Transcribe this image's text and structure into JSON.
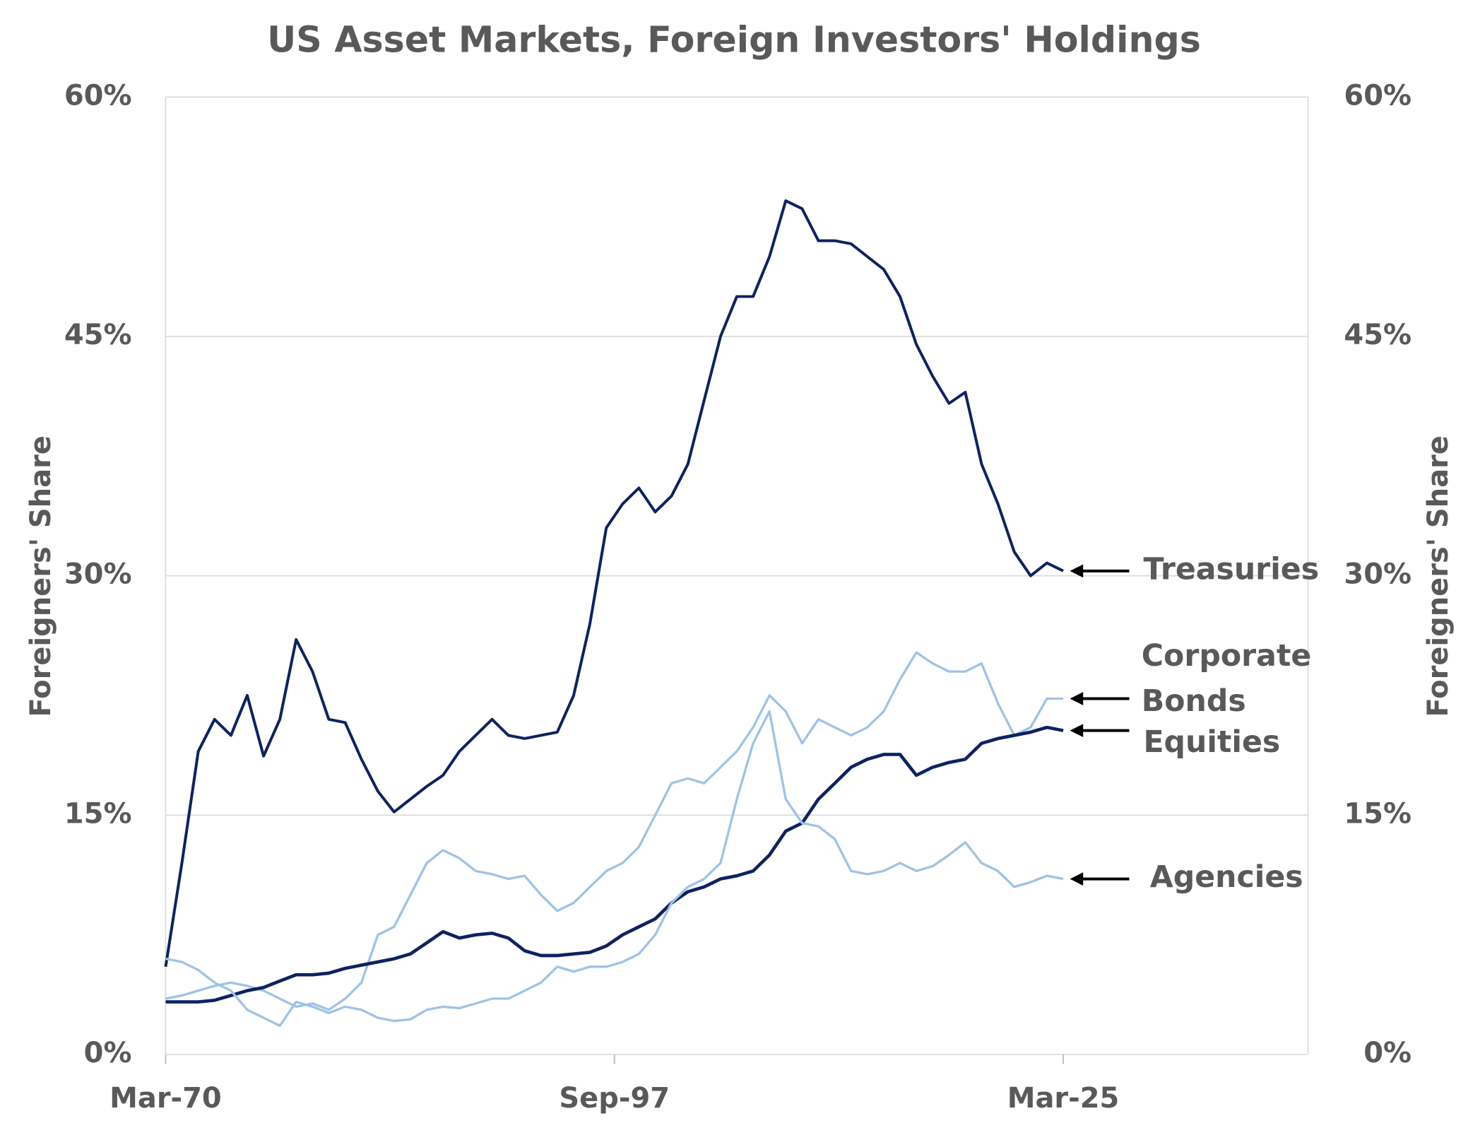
{
  "chart_data": {
    "type": "line",
    "title": "US Asset Markets, Foreign Investors' Holdings",
    "ylabel": "Foreigners' Share",
    "y2label": "Foreigners' Share",
    "x": [
      1970,
      1971,
      1972,
      1973,
      1974,
      1975,
      1976,
      1977,
      1978,
      1979,
      1980,
      1981,
      1982,
      1983,
      1984,
      1985,
      1986,
      1987,
      1988,
      1989,
      1990,
      1991,
      1992,
      1993,
      1994,
      1995,
      1996,
      1997,
      1998,
      1999,
      2000,
      2001,
      2002,
      2003,
      2004,
      2005,
      2006,
      2007,
      2008,
      2009,
      2010,
      2011,
      2012,
      2013,
      2014,
      2015,
      2016,
      2017,
      2018,
      2019,
      2020,
      2021,
      2022,
      2023,
      2024,
      2025
    ],
    "xlim": [
      1970,
      2040
    ],
    "xticks": [
      {
        "value": 1970,
        "label": "Mar-70"
      },
      {
        "value": 1997.5,
        "label": "Sep-97"
      },
      {
        "value": 2025,
        "label": "Mar-25"
      }
    ],
    "ylim": [
      0,
      60
    ],
    "yticks": [
      {
        "value": 0,
        "label": "0%"
      },
      {
        "value": 15,
        "label": "15%"
      },
      {
        "value": 30,
        "label": "30%"
      },
      {
        "value": 45,
        "label": "45%"
      },
      {
        "value": 60,
        "label": "60%"
      }
    ],
    "y2lim": [
      0,
      60
    ],
    "y2ticks": [
      {
        "value": 0,
        "label": "0%"
      },
      {
        "value": 15,
        "label": "15%"
      },
      {
        "value": 30,
        "label": "30%"
      },
      {
        "value": 45,
        "label": "45%"
      },
      {
        "value": 60,
        "label": "60%"
      }
    ],
    "grid": true,
    "series": [
      {
        "name": "Treasuries",
        "color": "#0d2260",
        "values": [
          5.5,
          12,
          19,
          21,
          20,
          22.5,
          18.7,
          21,
          26,
          24,
          21,
          20.8,
          18.5,
          16.5,
          15.2,
          16,
          16.8,
          17.5,
          19,
          20,
          21,
          20,
          19.8,
          20,
          20.2,
          22.5,
          27,
          33,
          34.5,
          35.5,
          34,
          35,
          37,
          41,
          45,
          47.5,
          47.5,
          50,
          53.5,
          53,
          51,
          51,
          50.8,
          50,
          49.2,
          47.5,
          44.5,
          42.5,
          40.8,
          41.5,
          37,
          34.5,
          31.5,
          30,
          30.8,
          30.3
        ]
      },
      {
        "name": "Corporate Bonds",
        "color": "#9dc3e6",
        "values": [
          3.5,
          3.7,
          4,
          4.3,
          4.5,
          4.3,
          4,
          3.5,
          3,
          3.2,
          2.8,
          3.5,
          4.5,
          7.5,
          8,
          10,
          12,
          12.8,
          12.3,
          11.5,
          11.3,
          11,
          11.2,
          10,
          9,
          9.5,
          10.5,
          11.5,
          12,
          13,
          15,
          17,
          17.3,
          17,
          18,
          19,
          20.5,
          22.5,
          21.5,
          19.5,
          21,
          20.5,
          20,
          20.5,
          21.5,
          23.5,
          25.2,
          24.5,
          24,
          24,
          24.5,
          22,
          20,
          20.5,
          22.3,
          22.3
        ]
      },
      {
        "name": "Equities",
        "color": "#0d2260",
        "values": [
          3.3,
          3.3,
          3.3,
          3.4,
          3.7,
          4,
          4.2,
          4.6,
          5,
          5,
          5.1,
          5.4,
          5.6,
          5.8,
          6,
          6.3,
          7,
          7.7,
          7.3,
          7.5,
          7.6,
          7.3,
          6.5,
          6.2,
          6.2,
          6.3,
          6.4,
          6.8,
          7.5,
          8,
          8.5,
          9.5,
          10.2,
          10.5,
          11,
          11.2,
          11.5,
          12.5,
          14,
          14.5,
          16,
          17,
          18,
          18.5,
          18.8,
          18.8,
          17.5,
          18,
          18.3,
          18.5,
          19.5,
          19.8,
          20,
          20.2,
          20.5,
          20.3
        ]
      },
      {
        "name": "Agencies",
        "color": "#9dc3e6",
        "values": [
          6,
          5.8,
          5.3,
          4.5,
          4,
          2.8,
          2.3,
          1.8,
          3.3,
          3,
          2.6,
          3,
          2.8,
          2.3,
          2.1,
          2.2,
          2.8,
          3,
          2.9,
          3.2,
          3.5,
          3.5,
          4,
          4.5,
          5.5,
          5.2,
          5.5,
          5.5,
          5.8,
          6.3,
          7.5,
          9.5,
          10.5,
          11,
          12,
          16,
          19.5,
          21.5,
          16,
          14.5,
          14.3,
          13.5,
          11.5,
          11.3,
          11.5,
          12,
          11.5,
          11.8,
          12.5,
          13.3,
          12,
          11.5,
          10.5,
          10.8,
          11.2,
          11
        ]
      }
    ]
  }
}
